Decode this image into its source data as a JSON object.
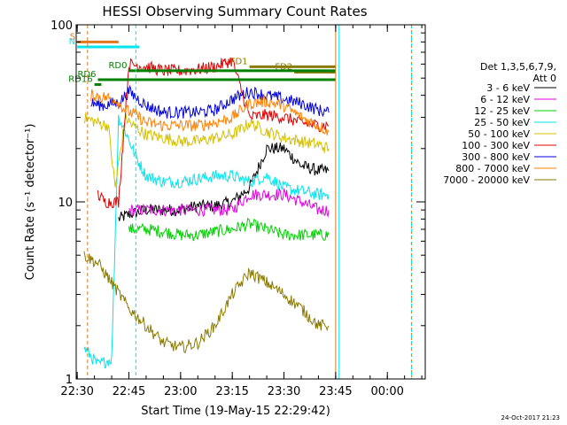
{
  "chart_data": {
    "type": "line",
    "title": "HESSI Observing Summary Count Rates",
    "xlabel": "Start Time (19-May-15 22:29:42)",
    "ylabel": "Count Rate (s⁻¹ detector⁻¹)",
    "y_scale": "log",
    "ylim": [
      1,
      100
    ],
    "xlim": [
      "22:29:42",
      "00:11:00"
    ],
    "x_ticks": [
      "22:30",
      "22:45",
      "23:00",
      "23:15",
      "23:30",
      "23:45",
      "00:00"
    ],
    "y_ticks": [
      "1",
      "10",
      "100"
    ],
    "legend": {
      "header": [
        "Det 1,3,5,6,7,9,",
        "Att 0"
      ],
      "placement": "right"
    },
    "flags": [
      {
        "label": "S",
        "color": "#e07820",
        "start": "22:30",
        "end": "22:42",
        "level": 80
      },
      {
        "label": "N",
        "color": "#00e5ee",
        "start": "22:30",
        "end": "22:48",
        "level": 75
      },
      {
        "label": "FD1",
        "color": "#8a7a00",
        "start": "23:20",
        "end": "23:45",
        "level": 58
      },
      {
        "label": "FD2",
        "color": "#8a7a00",
        "start": "23:33",
        "end": "23:45",
        "level": 54
      },
      {
        "label": "RD0",
        "color": "#008000",
        "start": "22:45",
        "end": "23:45",
        "level": 55
      },
      {
        "label": "RD6",
        "color": "#008000",
        "start": "22:36",
        "end": "23:45",
        "level": 49
      },
      {
        "label": "RD16",
        "color": "#008000",
        "start": "22:35",
        "end": "22:37",
        "level": 46
      }
    ],
    "series": [
      {
        "name": "3 - 6 keV",
        "color": "#000000",
        "x": [
          "22:42",
          "22:45",
          "22:50",
          "22:55",
          "23:00",
          "23:05",
          "23:10",
          "23:15",
          "23:20",
          "23:25",
          "23:30",
          "23:35",
          "23:40",
          "23:43"
        ],
        "values": [
          8,
          8.5,
          9,
          9,
          9,
          9.5,
          9.5,
          10,
          12,
          20,
          20,
          16,
          15,
          15
        ]
      },
      {
        "name": "6 - 12 keV",
        "color": "#e000e0",
        "x": [
          "22:45",
          "22:50",
          "22:55",
          "23:00",
          "23:05",
          "23:10",
          "23:15",
          "23:20",
          "23:25",
          "23:30",
          "23:35",
          "23:40",
          "23:43"
        ],
        "values": [
          9,
          9,
          9,
          9,
          9,
          9,
          9,
          11,
          11,
          11,
          10,
          9,
          9
        ]
      },
      {
        "name": "12 - 25 keV",
        "color": "#00d000",
        "x": [
          "22:45",
          "22:50",
          "22:55",
          "23:00",
          "23:05",
          "23:10",
          "23:15",
          "23:20",
          "23:25",
          "23:30",
          "23:35",
          "23:40",
          "23:43"
        ],
        "values": [
          7,
          7,
          6.8,
          6.5,
          6.5,
          6.8,
          7,
          7.5,
          7,
          6.5,
          6.5,
          6.5,
          6.5
        ]
      },
      {
        "name": "25 - 50 keV",
        "color": "#00e5ee",
        "x": [
          "22:32",
          "22:36",
          "22:40",
          "22:42",
          "22:44",
          "22:47",
          "22:50",
          "22:55",
          "23:00",
          "23:05",
          "23:10",
          "23:15",
          "23:20",
          "23:25",
          "23:30",
          "23:35",
          "23:40",
          "23:43"
        ],
        "values": [
          1.5,
          1.2,
          1.3,
          30,
          25,
          18,
          14,
          13,
          13,
          13.5,
          14,
          14,
          13,
          14,
          12,
          11.5,
          11,
          11
        ]
      },
      {
        "name": "50 - 100 keV",
        "color": "#d4c000",
        "x": [
          "22:32",
          "22:36",
          "22:39",
          "22:41",
          "22:44",
          "22:46",
          "22:50",
          "22:55",
          "23:00",
          "23:05",
          "23:10",
          "23:15",
          "23:18",
          "23:20",
          "23:25",
          "23:30",
          "23:35",
          "23:40",
          "23:43"
        ],
        "values": [
          30,
          28,
          27,
          12,
          30,
          27,
          24,
          23,
          22,
          22,
          23,
          24,
          26,
          28,
          25,
          23,
          22,
          21,
          20
        ]
      },
      {
        "name": "100 - 300 keV",
        "color": "#e00000",
        "x": [
          "22:36",
          "22:38",
          "22:40",
          "22:42",
          "22:45",
          "22:50",
          "22:55",
          "23:00",
          "23:05",
          "23:10",
          "23:15",
          "23:20",
          "23:25",
          "23:30",
          "23:35",
          "23:40",
          "23:43"
        ],
        "values": [
          11,
          10,
          10,
          10,
          60,
          58,
          55,
          55,
          56,
          58,
          63,
          30,
          31,
          30,
          28,
          27,
          27
        ]
      },
      {
        "name": "300 - 800 keV",
        "color": "#0000e0",
        "x": [
          "22:34",
          "22:38",
          "22:40",
          "22:42",
          "22:45",
          "22:50",
          "22:55",
          "23:00",
          "23:05",
          "23:10",
          "23:15",
          "23:20",
          "23:25",
          "23:30",
          "23:35",
          "23:40",
          "23:43"
        ],
        "values": [
          36,
          35,
          36,
          36,
          42,
          35,
          32,
          32,
          32,
          33,
          38,
          42,
          40,
          38,
          36,
          33,
          32
        ]
      },
      {
        "name": "800 - 7000 keV",
        "color": "#ff7f00",
        "x": [
          "22:34",
          "22:38",
          "22:41",
          "22:44",
          "22:47",
          "22:50",
          "22:55",
          "23:00",
          "23:05",
          "23:10",
          "23:15",
          "23:20",
          "23:25",
          "23:30",
          "23:35",
          "23:40",
          "23:43"
        ],
        "values": [
          40,
          39,
          38,
          33,
          31,
          28,
          27,
          27,
          27,
          28,
          30,
          36,
          37,
          35,
          30,
          27,
          25
        ]
      },
      {
        "name": "7000 - 20000 keV",
        "color": "#8a7a00",
        "x": [
          "22:32",
          "22:36",
          "22:40",
          "22:45",
          "22:50",
          "22:55",
          "23:00",
          "23:05",
          "23:10",
          "23:15",
          "23:20",
          "23:25",
          "23:30",
          "23:35",
          "23:40",
          "23:43"
        ],
        "values": [
          5,
          4.5,
          3.5,
          2.5,
          2,
          1.6,
          1.5,
          1.6,
          2,
          3,
          4,
          3.5,
          3,
          2.5,
          2,
          2
        ]
      }
    ],
    "grid": false
  },
  "footer": "24-Oct-2017 21:23"
}
